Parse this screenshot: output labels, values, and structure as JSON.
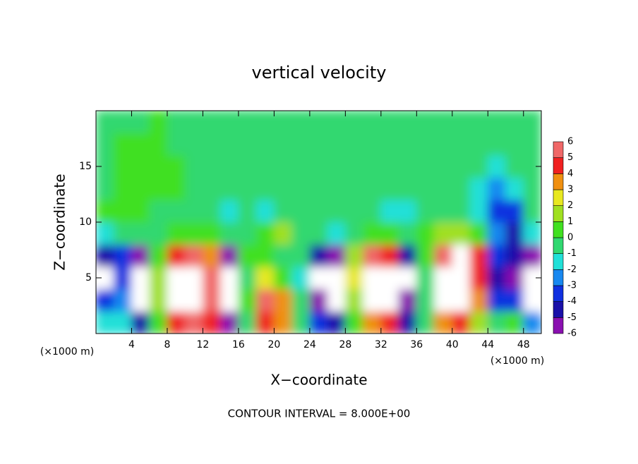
{
  "chart_data": {
    "type": "heatmap",
    "title": "vertical velocity",
    "x_label": "X−coordinate",
    "y_label": "Z−coordinate",
    "x_unit_label": "(×1000 m)",
    "footer": "CONTOUR INTERVAL = 8.000E+00",
    "xlim": [
      0,
      50
    ],
    "ylim": [
      0,
      20
    ],
    "xticks": [
      4,
      8,
      12,
      16,
      20,
      24,
      28,
      32,
      36,
      40,
      44,
      48
    ],
    "yticks": [
      5,
      10,
      15
    ],
    "x": [
      1,
      3,
      5,
      7,
      9,
      11,
      13,
      15,
      17,
      19,
      21,
      23,
      25,
      27,
      29,
      31,
      33,
      35,
      37,
      39,
      41,
      43,
      45,
      47,
      49
    ],
    "z": [
      1,
      3,
      5,
      7,
      9,
      11,
      13,
      15,
      17,
      19
    ],
    "values": [
      [
        -1,
        -1,
        -4,
        1,
        5,
        6,
        5,
        -5,
        0,
        5,
        4,
        0,
        -3,
        -4,
        1,
        4,
        5,
        -4,
        0,
        4,
        5,
        2,
        0,
        1,
        -2
      ],
      [
        -3,
        -2,
        -7,
        2,
        7,
        8,
        6,
        -7,
        1,
        6,
        4,
        0,
        -6,
        -7,
        2,
        8,
        7,
        -6,
        0,
        7,
        8,
        4,
        -3,
        -3,
        -7
      ],
      [
        -7,
        -3,
        -7,
        2,
        8,
        9,
        6,
        -8,
        0,
        3,
        1,
        -1,
        -7,
        -8,
        3,
        9,
        8,
        -7,
        0,
        8,
        9,
        5,
        -4,
        -5,
        -8
      ],
      [
        -4,
        -3,
        -5,
        1,
        5,
        6,
        4,
        -5,
        1,
        1,
        0,
        0,
        -4,
        -5,
        2,
        6,
        5,
        -4,
        1,
        6,
        7,
        5,
        -3,
        -4,
        -5
      ],
      [
        -1,
        0,
        0,
        0,
        1,
        1,
        1,
        0,
        0,
        1,
        2,
        0,
        0,
        -1,
        0,
        1,
        1,
        0,
        1,
        2,
        2,
        1,
        -2,
        -4,
        -1
      ],
      [
        1,
        1,
        1,
        0,
        0,
        0,
        0,
        -1,
        0,
        -1,
        0,
        0,
        0,
        0,
        0,
        0,
        -1,
        -1,
        0,
        0,
        0,
        -1,
        -3,
        -3,
        0
      ],
      [
        0,
        1,
        1,
        1,
        1,
        0,
        0,
        0,
        0,
        0,
        0,
        0,
        0,
        0,
        0,
        0,
        0,
        0,
        0,
        0,
        0,
        -1,
        -2,
        -1,
        0
      ],
      [
        0,
        1,
        1,
        1,
        1,
        0,
        0,
        0,
        0,
        0,
        0,
        0,
        0,
        0,
        0,
        0,
        0,
        0,
        0,
        0,
        0,
        0,
        -1,
        0,
        0
      ],
      [
        0,
        1,
        1,
        1,
        0,
        0,
        0,
        0,
        0,
        0,
        0,
        0,
        0,
        0,
        0,
        0,
        0,
        0,
        0,
        0,
        0,
        0,
        0,
        0,
        0
      ],
      [
        0,
        0,
        0,
        1,
        0,
        0,
        0,
        0,
        0,
        0,
        0,
        0,
        0,
        0,
        0,
        0,
        0,
        0,
        0,
        0,
        0,
        0,
        0,
        0,
        0
      ]
    ],
    "colorbar_ticks": [
      -6,
      -5,
      -4,
      -3,
      -2,
      -1,
      0,
      1,
      2,
      3,
      4,
      5,
      6
    ],
    "colors": [
      "#8a10b0",
      "#1a10a8",
      "#1030e0",
      "#1888f0",
      "#20e0d8",
      "#30d870",
      "#40e020",
      "#a0e020",
      "#e8e820",
      "#f09010",
      "#f02020",
      "#f06868"
    ],
    "over_color": "#ffffff"
  }
}
